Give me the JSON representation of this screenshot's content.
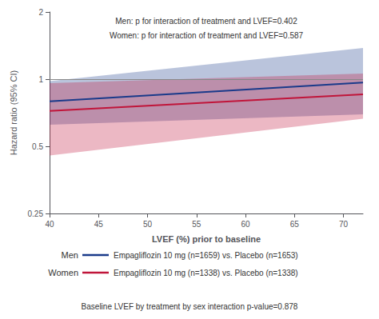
{
  "chart_data": {
    "type": "line",
    "x": [
      40,
      72
    ],
    "series": [
      {
        "name": "Men",
        "color": "#1a3a8a",
        "values": [
          0.795,
          0.965
        ],
        "ci_lower": [
          0.625,
          0.695
        ],
        "ci_upper": [
          0.98,
          1.38
        ],
        "detail": "Empagliflozin 10 mg (n=1659) vs. Placebo (n=1653)"
      },
      {
        "name": "Women",
        "color": "#c0153a",
        "values": [
          0.72,
          0.855
        ],
        "ci_lower": [
          0.455,
          0.665
        ],
        "ci_upper": [
          0.96,
          1.06
        ],
        "detail": "Empagliflozin 10 mg (n=1338) vs. Placebo (n=1338)"
      }
    ],
    "xlabel": "LVEF (%) prior to baseline",
    "ylabel": "Hazard ratio (95% CI)",
    "xlim": [
      40,
      72
    ],
    "ylim": [
      0.25,
      2
    ],
    "xticks": [
      40,
      45,
      50,
      55,
      60,
      65,
      70
    ],
    "yticks": [
      0.25,
      0.5,
      1,
      2
    ],
    "log": "y",
    "grid": false,
    "legend": "bottom",
    "hline": 1.0,
    "annotations": [
      "Men: p for interaction of treatment and LVEF=0.402",
      "Women: p for interaction of treatment and LVEF=0.587"
    ],
    "footnote": "Baseline LVEF by treatment by sex interaction p-value=0.878"
  }
}
